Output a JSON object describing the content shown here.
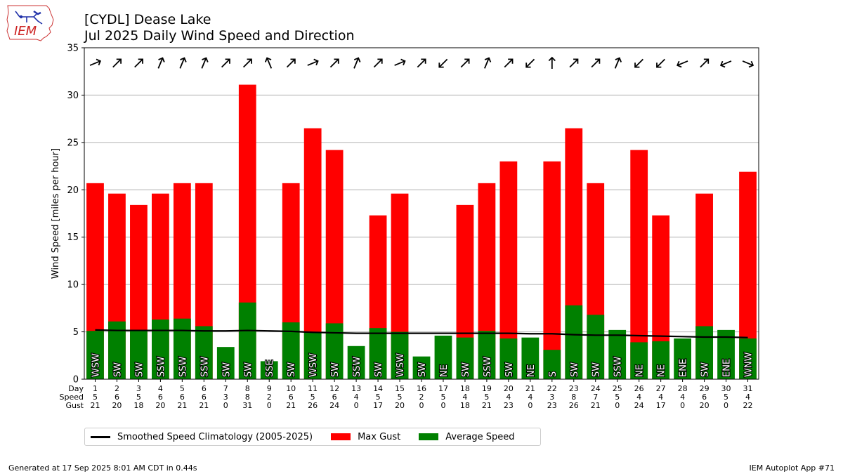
{
  "header": {
    "title_line1": "[CYDL] Dease Lake",
    "title_line2": "Jul 2025 Daily Wind Speed and Direction"
  },
  "footer": {
    "generated": "Generated at 17 Sep 2025 8:01 AM CDT in 0.44s",
    "app": "IEM Autoplot App #71"
  },
  "logo": {
    "text": "IEM"
  },
  "legend": {
    "climatology": "Smoothed Speed Climatology (2005-2025)",
    "gust": "Max Gust",
    "average": "Average Speed"
  },
  "colors": {
    "gust": "#ff0000",
    "average": "#008000",
    "climatology": "#000000"
  },
  "chart_data": {
    "type": "bar",
    "ylabel": "Wind Speed [miles per hour]",
    "ylim": [
      0,
      35
    ],
    "yticks": [
      0,
      5,
      10,
      15,
      20,
      25,
      30,
      35
    ],
    "grid": true,
    "row_labels": [
      "Day",
      "Speed",
      "Gust"
    ],
    "days": [
      "1",
      "2",
      "3",
      "4",
      "5",
      "6",
      "7",
      "8",
      "9",
      "10",
      "11",
      "12",
      "13",
      "14",
      "15",
      "16",
      "17",
      "18",
      "19",
      "20",
      "21",
      "22",
      "23",
      "24",
      "25",
      "26",
      "27",
      "28",
      "29",
      "30",
      "31"
    ],
    "speed_labels": [
      "5",
      "6",
      "5",
      "6",
      "6",
      "6",
      "3",
      "8",
      "2",
      "6",
      "5",
      "6",
      "4",
      "5",
      "5",
      "2",
      "5",
      "4",
      "5",
      "4",
      "4",
      "3",
      "8",
      "7",
      "5",
      "4",
      "4",
      "4",
      "6",
      "5",
      "4"
    ],
    "gust_labels": [
      "21",
      "20",
      "18",
      "20",
      "21",
      "21",
      "0",
      "31",
      "0",
      "21",
      "26",
      "24",
      "0",
      "17",
      "20",
      "0",
      "0",
      "18",
      "21",
      "23",
      "0",
      "23",
      "26",
      "21",
      "0",
      "24",
      "17",
      "0",
      "20",
      "0",
      "22"
    ],
    "max_gust": [
      20.7,
      19.6,
      18.4,
      19.6,
      20.7,
      20.7,
      0,
      31.1,
      0,
      20.7,
      26.5,
      24.2,
      0,
      17.3,
      19.6,
      0,
      0,
      18.4,
      20.7,
      23.0,
      0,
      23.0,
      26.5,
      20.7,
      0,
      24.2,
      17.3,
      0,
      19.6,
      0,
      21.9
    ],
    "avg_speed": [
      5.1,
      6.1,
      5.2,
      6.3,
      6.4,
      5.6,
      3.4,
      8.1,
      1.9,
      6.0,
      5.0,
      5.9,
      3.5,
      5.4,
      5.0,
      2.4,
      4.6,
      4.4,
      5.1,
      4.3,
      4.4,
      3.1,
      7.8,
      6.8,
      5.2,
      3.9,
      4.0,
      4.3,
      5.6,
      5.2,
      4.3
    ],
    "direction_labels": [
      "WSW",
      "SW",
      "SW",
      "SSW",
      "SSW",
      "SSW",
      "SW",
      "SW",
      "SSE",
      "SW",
      "WSW",
      "SW",
      "SSW",
      "SW",
      "WSW",
      "SW",
      "NE",
      "SW",
      "SSW",
      "SW",
      "NE",
      "S",
      "SW",
      "SW",
      "SSW",
      "NE",
      "NE",
      "ENE",
      "SW",
      "ENE",
      "WNW"
    ],
    "direction_deg": [
      247.5,
      225,
      225,
      202.5,
      202.5,
      202.5,
      225,
      225,
      157.5,
      225,
      247.5,
      225,
      202.5,
      225,
      247.5,
      225,
      45,
      225,
      202.5,
      225,
      45,
      180,
      225,
      225,
      202.5,
      45,
      45,
      67.5,
      225,
      67.5,
      292.5
    ],
    "climatology": [
      5.2,
      5.15,
      5.15,
      5.15,
      5.15,
      5.1,
      5.1,
      5.15,
      5.1,
      5.05,
      4.95,
      4.9,
      4.85,
      4.85,
      4.85,
      4.85,
      4.85,
      4.85,
      4.85,
      4.85,
      4.8,
      4.8,
      4.7,
      4.65,
      4.65,
      4.6,
      4.55,
      4.5,
      4.45,
      4.45,
      4.4
    ]
  }
}
